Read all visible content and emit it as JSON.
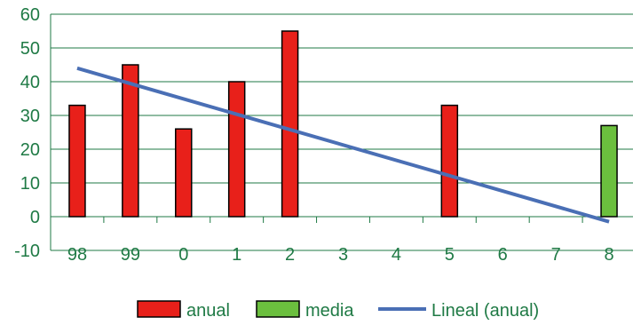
{
  "chart_data": {
    "type": "bar",
    "categories": [
      "98",
      "99",
      "0",
      "1",
      "2",
      "3",
      "4",
      "5",
      "6",
      "7",
      "8"
    ],
    "series": [
      {
        "name": "anual",
        "values": [
          33,
          45,
          26,
          40,
          55,
          null,
          null,
          33,
          null,
          null,
          null
        ],
        "color": "#e8201a"
      },
      {
        "name": "media",
        "values": [
          null,
          null,
          null,
          null,
          null,
          null,
          null,
          null,
          null,
          null,
          27
        ],
        "color": "#6bbf3e"
      }
    ],
    "trendline": {
      "name": "Lineal (anual)",
      "type": "linear",
      "start": {
        "x": "98",
        "y": 44
      },
      "end": {
        "x": "8",
        "y": -1.5
      },
      "color": "#4a6fb5"
    },
    "y_ticks": [
      "-10",
      "0",
      "10",
      "20",
      "30",
      "40",
      "50",
      "60"
    ],
    "ylim": [
      -10,
      60
    ],
    "grid": true,
    "legend_position": "bottom",
    "axis_color": "#1f7a45",
    "text_color": "#1f7a45"
  }
}
